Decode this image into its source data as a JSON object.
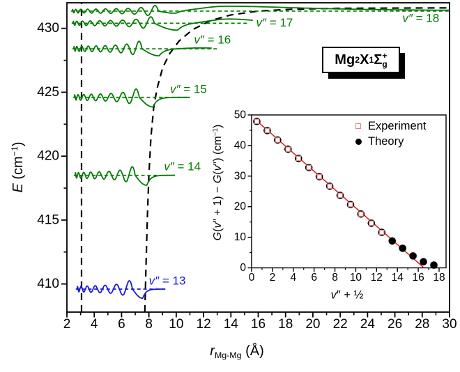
{
  "title_box": [
    {
      "t": "Mg",
      "b": 1
    },
    {
      "t": "2",
      "b": 1,
      "sub": 1
    },
    {
      "t": " X",
      "b": 1
    },
    {
      "t": "1",
      "b": 1,
      "sup": 1
    },
    {
      "t": "Σ",
      "b": 1
    },
    {
      "stack": [
        "+",
        "g"
      ],
      "b": 1
    }
  ],
  "labels": {
    "main_y": [
      {
        "t": "E",
        "i": 1
      },
      {
        "t": " (cm"
      },
      {
        "t": "−1",
        "sup": 1
      },
      {
        "t": ")"
      }
    ],
    "main_x": [
      {
        "t": "r",
        "i": 1
      },
      {
        "t": "Mg-Mg",
        "sub": 1
      },
      {
        "t": " (Å)"
      }
    ],
    "inset_y": [
      {
        "t": "G",
        "i": 1
      },
      {
        "t": "("
      },
      {
        "t": "v",
        "i": 1
      },
      {
        "t": "″ + 1) − "
      },
      {
        "t": "G",
        "i": 1
      },
      {
        "t": "("
      },
      {
        "t": "v",
        "i": 1
      },
      {
        "t": "″) (cm"
      },
      {
        "t": "−1",
        "sup": 1
      },
      {
        "t": ")"
      }
    ],
    "inset_x": [
      {
        "t": "v",
        "i": 1
      },
      {
        "t": "″ + ½"
      }
    ]
  },
  "chart_data": [
    {
      "id": "main",
      "type": "line",
      "title": "Vibrational wavefunctions of Mg2 X1Sigma-g+ ground state",
      "xlabel": "r Mg-Mg (Å)",
      "ylabel": "E (cm−1)",
      "xlim": [
        2,
        30
      ],
      "ylim": [
        407.8,
        432.0
      ],
      "xticks": [
        2,
        4,
        6,
        8,
        10,
        12,
        14,
        16,
        18,
        20,
        22,
        24,
        26,
        28,
        30
      ],
      "x_minor": [
        3,
        5,
        7,
        9,
        11,
        13,
        15,
        17,
        19,
        21,
        23,
        25,
        27,
        29
      ],
      "yticks": [
        410,
        415,
        420,
        425,
        430
      ],
      "y_minor": [
        412.5,
        417.5,
        422.5,
        427.5
      ],
      "axis_color": "#000000",
      "inner_wall_r": 3.07,
      "dissociation_energy": 431.6,
      "potential_outer_wall": [
        [
          7.7,
          407.8
        ],
        [
          7.78,
          411
        ],
        [
          7.88,
          415
        ],
        [
          8.0,
          418.5
        ],
        [
          8.15,
          421.5
        ],
        [
          8.35,
          423.8
        ],
        [
          8.6,
          425.3
        ],
        [
          9.0,
          426.9
        ],
        [
          9.5,
          428.0
        ],
        [
          10.2,
          429.0
        ],
        [
          11.2,
          429.9
        ],
        [
          12.5,
          430.6
        ],
        [
          14,
          431.05
        ],
        [
          16,
          431.35
        ],
        [
          18.5,
          431.5
        ],
        [
          22,
          431.57
        ],
        [
          30,
          431.6
        ]
      ],
      "levels": [
        {
          "v": 13,
          "E": 409.6,
          "color": "#1a1ad9",
          "r_start": 2.75,
          "dash_start": 2.65,
          "dash_end": 9.35,
          "osc_end": 6.8,
          "half_cycles": 13,
          "amp": 0.38,
          "dip_depth": 0.72,
          "dip_width": 1.5,
          "solid_end": 9.2,
          "label_italic": "v″",
          "label_plain": " = 13",
          "label_r": 8.0,
          "label_E": 409.95
        },
        {
          "v": 14,
          "E": 418.5,
          "color": "#007c00",
          "r_start": 2.6,
          "dash_start": 2.5,
          "dash_end": 9.9,
          "osc_end": 7.0,
          "half_cycles": 15,
          "amp": 0.38,
          "dip_depth": 0.78,
          "dip_width": 1.7,
          "solid_end": 9.9,
          "label_italic": "v″",
          "label_plain": " = 14",
          "label_r": 9.1,
          "label_E": 418.9
        },
        {
          "v": 15,
          "E": 424.6,
          "color": "#007c00",
          "r_start": 2.55,
          "dash_start": 2.45,
          "dash_end": 11.0,
          "osc_end": 7.3,
          "half_cycles": 15,
          "amp": 0.37,
          "dip_depth": 0.75,
          "dip_width": 2.0,
          "solid_end": 11.0,
          "label_italic": "v″",
          "label_plain": " = 15",
          "label_r": 9.55,
          "label_E": 424.95
        },
        {
          "v": 16,
          "E": 428.4,
          "color": "#007c00",
          "r_start": 2.5,
          "dash_start": 2.4,
          "dash_end": 13.0,
          "osc_end": 7.5,
          "half_cycles": 17,
          "amp": 0.33,
          "dip_depth": 0.55,
          "dip_width": 2.5,
          "hump": {
            "A": 0.07,
            "c": 11.8,
            "wl": 1.5,
            "wr": 1.5
          },
          "solid_end": 12.6,
          "label_italic": "v″",
          "label_plain": " = 16",
          "label_r": 11.3,
          "label_E": 428.8
        },
        {
          "v": 17,
          "E": 430.4,
          "color": "#007c00",
          "r_start": 2.45,
          "dash_start": 2.35,
          "dash_end": 15.3,
          "osc_end": 8.4,
          "half_cycles": 17,
          "amp": 0.28,
          "dip_depth": 0.55,
          "dip_width": 3.4,
          "hump": {
            "A": 0.33,
            "c": 13.9,
            "wl": 2.0,
            "wr": 2.6
          },
          "solid_end": 15.6,
          "label_italic": "v″",
          "label_plain": " = 17",
          "label_r": 15.85,
          "label_E": 430.15
        },
        {
          "v": 18,
          "E": 431.35,
          "color": "#007c00",
          "r_start": 2.4,
          "dash_start": 2.3,
          "dash_end": 30,
          "osc_end": 8.7,
          "half_cycles": 19,
          "amp": 0.24,
          "dip_depth": 0.2,
          "dip_width": 2.6,
          "hump": {
            "A": 0.38,
            "c": 13.6,
            "wl": 2.4,
            "wr": 7.5
          },
          "solid_end": 30,
          "label_italic": "v″",
          "label_plain": " = 18",
          "label_r": 26.55,
          "label_E": 430.5
        }
      ]
    },
    {
      "id": "inset",
      "type": "scatter",
      "xlabel": "v″ + ½",
      "ylabel": "G(v″ + 1) − G(v″) (cm−1)",
      "xlim": [
        0,
        18.67
      ],
      "ylim": [
        0,
        50
      ],
      "xticks": [
        0,
        2,
        4,
        6,
        8,
        10,
        12,
        14,
        16,
        18
      ],
      "x_minor": [
        1,
        3,
        5,
        7,
        9,
        11,
        13,
        15,
        17
      ],
      "yticks": [
        0,
        10,
        20,
        30,
        40,
        50
      ],
      "y_minor": [
        5,
        15,
        25,
        35,
        45
      ],
      "fit_line": {
        "color": "#e01818",
        "x1": 0.25,
        "y1": 48.8,
        "x2": 16.55,
        "y2": 0
      },
      "series": [
        {
          "name": "Experiment",
          "marker": "open-square",
          "color": "#e08585",
          "x": [
            0.5,
            1.5,
            2.5,
            3.5,
            4.5,
            5.5,
            6.5,
            7.5,
            8.5,
            9.5,
            10.5,
            11.5,
            12.5
          ],
          "y": [
            47.9,
            44.9,
            41.8,
            38.8,
            35.8,
            32.8,
            29.8,
            26.7,
            23.7,
            20.7,
            17.6,
            14.6,
            11.6
          ]
        },
        {
          "name": "Theory",
          "marker": "filled-circle",
          "color": "#000000",
          "x": [
            0.5,
            1.5,
            2.5,
            3.5,
            4.5,
            5.5,
            6.5,
            7.5,
            8.5,
            9.5,
            10.5,
            11.5,
            12.5,
            13.5,
            14.5,
            15.5,
            16.5,
            17.5
          ],
          "y": [
            47.9,
            44.9,
            41.8,
            38.8,
            35.8,
            32.8,
            29.8,
            26.7,
            23.7,
            20.7,
            17.6,
            14.6,
            11.6,
            8.8,
            6.4,
            3.9,
            2.0,
            0.9
          ]
        }
      ],
      "legend": {
        "position": "top-right"
      }
    }
  ]
}
